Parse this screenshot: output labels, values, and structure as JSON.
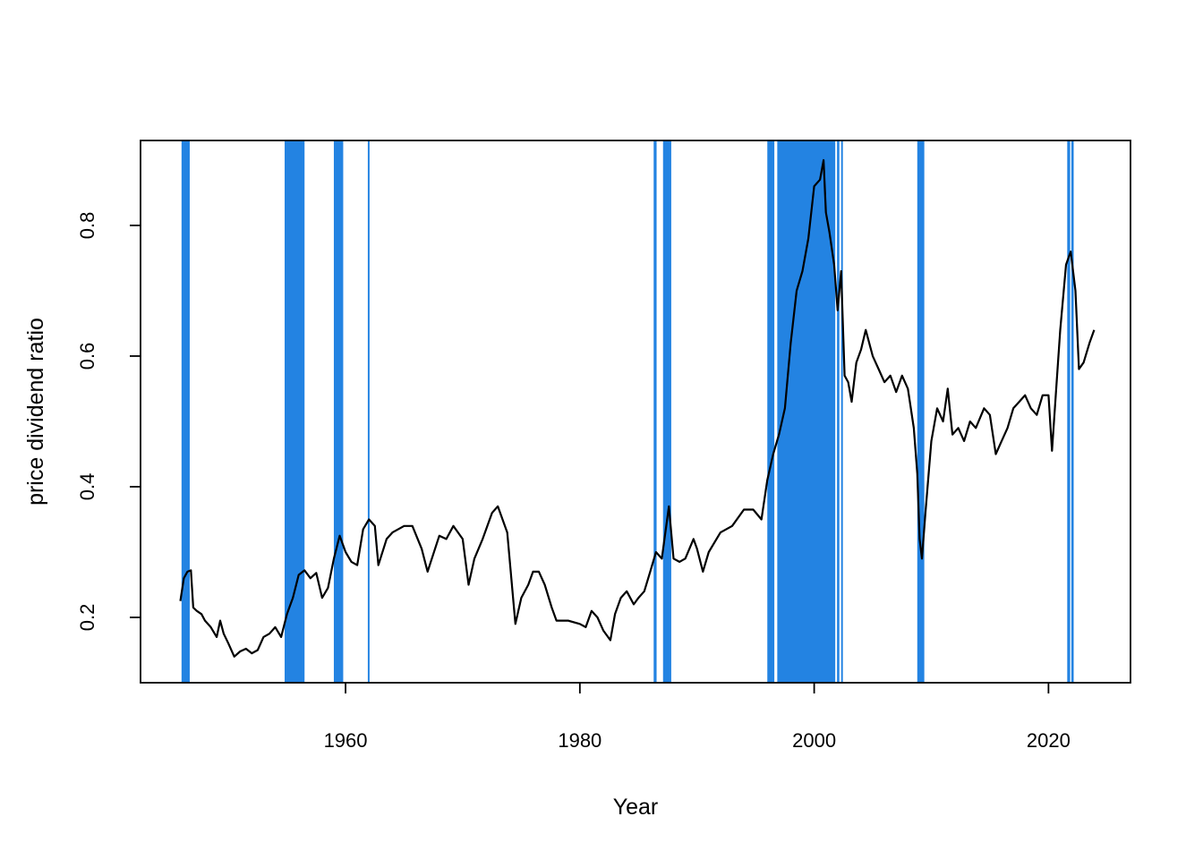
{
  "chart_data": {
    "type": "line",
    "xlabel": "Year",
    "ylabel": "price dividend ratio",
    "xlim": [
      1942.5,
      2027.0
    ],
    "ylim": [
      0.1,
      0.93
    ],
    "x_ticks": [
      1960,
      1980,
      2000,
      2020
    ],
    "x_tick_labels": [
      "1960",
      "1980",
      "2000",
      "2020"
    ],
    "y_ticks": [
      0.2,
      0.4,
      0.6,
      0.8
    ],
    "y_tick_labels": [
      "0.2",
      "0.4",
      "0.6",
      "0.8"
    ],
    "grid": false,
    "colors": {
      "line": "#000000",
      "bands": "#2383e2",
      "axis": "#000000"
    },
    "bands": [
      [
        1946.0,
        1946.7
      ],
      [
        1954.8,
        1956.5
      ],
      [
        1959.0,
        1959.8
      ],
      [
        1961.9,
        1962.05
      ],
      [
        1986.3,
        1986.55
      ],
      [
        1987.1,
        1987.8
      ],
      [
        1996.0,
        1996.6
      ],
      [
        1996.85,
        2001.8
      ],
      [
        2001.95,
        2002.15
      ],
      [
        2002.3,
        2002.45
      ],
      [
        2008.8,
        2009.4
      ],
      [
        2021.6,
        2021.85
      ],
      [
        2021.95,
        2022.15
      ]
    ],
    "series": [
      {
        "x": [
          1945.9,
          1946.2,
          1946.5,
          1946.8,
          1947.0,
          1947.3,
          1947.7,
          1948.0,
          1948.5,
          1949.0,
          1949.3,
          1949.6,
          1950.0,
          1950.5,
          1951.0,
          1951.5,
          1952.0,
          1952.5,
          1953.0,
          1953.5,
          1954.0,
          1954.5,
          1955.0,
          1955.5,
          1956.0,
          1956.5,
          1957.0,
          1957.5,
          1958.0,
          1958.5,
          1959.0,
          1959.5,
          1960.0,
          1960.5,
          1961.0,
          1961.5,
          1962.0,
          1962.5,
          1962.8,
          1963.5,
          1964.0,
          1965.0,
          1965.7,
          1966.5,
          1967.0,
          1968.0,
          1968.6,
          1969.2,
          1970.0,
          1970.5,
          1971.0,
          1971.7,
          1972.5,
          1973.0,
          1973.8,
          1974.5,
          1975.0,
          1975.6,
          1976.0,
          1976.5,
          1977.0,
          1977.6,
          1978.0,
          1979.0,
          1980.0,
          1980.5,
          1981.0,
          1981.5,
          1982.0,
          1982.6,
          1983.0,
          1983.5,
          1984.0,
          1984.6,
          1985.0,
          1985.5,
          1986.0,
          1986.5,
          1987.0,
          1987.6,
          1988.0,
          1988.5,
          1989.0,
          1989.7,
          1990.0,
          1990.5,
          1991.0,
          1992.0,
          1993.0,
          1994.0,
          1994.8,
          1995.5,
          1996.0,
          1996.5,
          1997.0,
          1997.5,
          1998.0,
          1998.5,
          1999.0,
          1999.5,
          2000.0,
          2000.5,
          2000.8,
          2001.0,
          2001.3,
          2001.7,
          2002.0,
          2002.3,
          2002.6,
          2002.9,
          2003.2,
          2003.6,
          2004.0,
          2004.4,
          2005.0,
          2005.5,
          2006.0,
          2006.5,
          2007.0,
          2007.5,
          2008.0,
          2008.5,
          2008.8,
          2009.0,
          2009.2,
          2009.5,
          2010.0,
          2010.5,
          2011.0,
          2011.4,
          2011.8,
          2012.3,
          2012.8,
          2013.3,
          2013.8,
          2014.5,
          2015.0,
          2015.5,
          2016.0,
          2016.5,
          2017.0,
          2017.5,
          2018.0,
          2018.5,
          2019.0,
          2019.5,
          2020.0,
          2020.3,
          2020.7,
          2021.0,
          2021.5,
          2021.9,
          2022.3,
          2022.6,
          2023.0,
          2023.5,
          2023.9
        ],
        "y": [
          0.225,
          0.26,
          0.27,
          0.272,
          0.215,
          0.21,
          0.205,
          0.195,
          0.185,
          0.17,
          0.195,
          0.175,
          0.16,
          0.14,
          0.148,
          0.152,
          0.145,
          0.15,
          0.17,
          0.175,
          0.185,
          0.17,
          0.205,
          0.23,
          0.265,
          0.272,
          0.26,
          0.268,
          0.23,
          0.245,
          0.29,
          0.325,
          0.3,
          0.285,
          0.28,
          0.335,
          0.35,
          0.34,
          0.28,
          0.32,
          0.33,
          0.34,
          0.34,
          0.305,
          0.27,
          0.325,
          0.32,
          0.34,
          0.32,
          0.25,
          0.29,
          0.32,
          0.36,
          0.37,
          0.33,
          0.19,
          0.23,
          0.25,
          0.27,
          0.27,
          0.25,
          0.215,
          0.195,
          0.195,
          0.19,
          0.185,
          0.21,
          0.2,
          0.18,
          0.165,
          0.205,
          0.23,
          0.24,
          0.22,
          0.23,
          0.24,
          0.27,
          0.3,
          0.29,
          0.37,
          0.29,
          0.285,
          0.29,
          0.32,
          0.305,
          0.27,
          0.3,
          0.33,
          0.34,
          0.365,
          0.365,
          0.35,
          0.41,
          0.45,
          0.48,
          0.52,
          0.62,
          0.7,
          0.73,
          0.78,
          0.86,
          0.87,
          0.9,
          0.82,
          0.79,
          0.74,
          0.67,
          0.73,
          0.57,
          0.56,
          0.53,
          0.59,
          0.61,
          0.64,
          0.6,
          0.58,
          0.56,
          0.57,
          0.545,
          0.57,
          0.55,
          0.49,
          0.42,
          0.32,
          0.29,
          0.36,
          0.47,
          0.52,
          0.5,
          0.55,
          0.48,
          0.49,
          0.47,
          0.5,
          0.49,
          0.52,
          0.51,
          0.45,
          0.47,
          0.49,
          0.52,
          0.53,
          0.54,
          0.52,
          0.51,
          0.54,
          0.54,
          0.455,
          0.56,
          0.64,
          0.74,
          0.76,
          0.7,
          0.58,
          0.59,
          0.62,
          0.64
        ]
      }
    ]
  }
}
